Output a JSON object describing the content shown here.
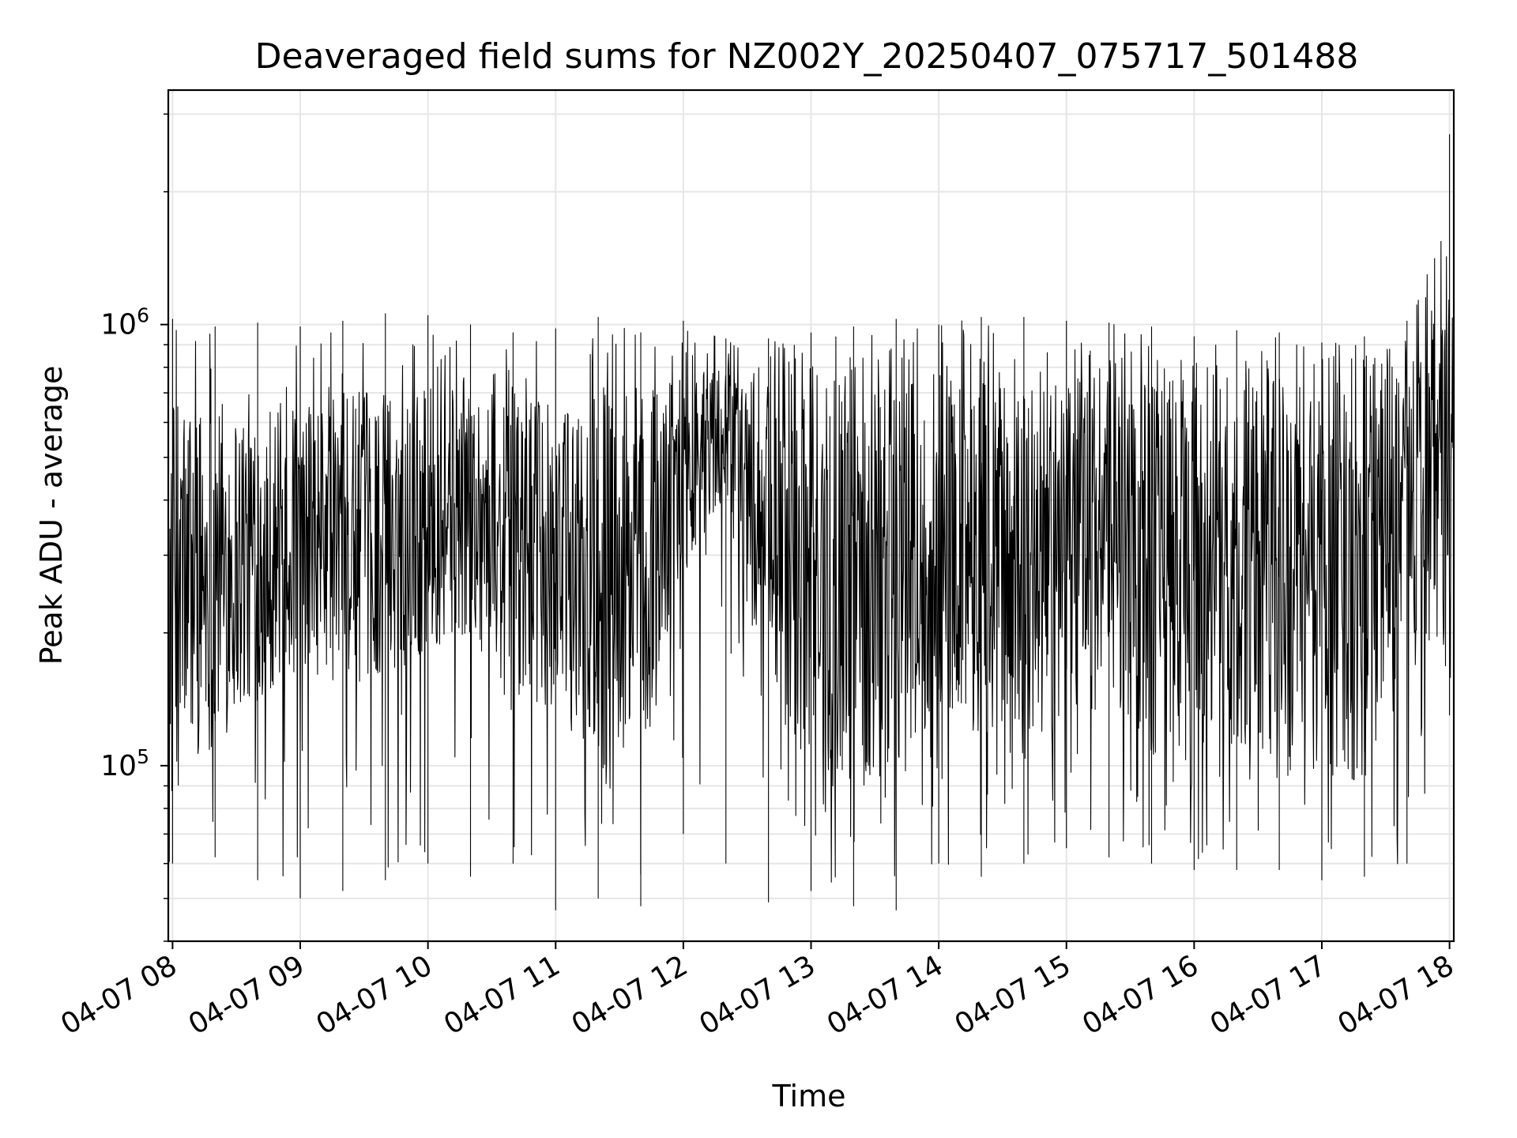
{
  "chart_data": {
    "type": "line",
    "title": "Deaveraged field sums for NZ002Y_20250407_075717_501488",
    "xlabel": "Time",
    "ylabel": "Peak ADU - average",
    "yscale": "log",
    "xlim": [
      "2025-04-07 07:58",
      "2025-04-07 18:02"
    ],
    "ylim": [
      40000,
      3400000
    ],
    "x_ticks": [
      {
        "value": "2025-04-07 08:00",
        "label": "04-07 08"
      },
      {
        "value": "2025-04-07 09:00",
        "label": "04-07 09"
      },
      {
        "value": "2025-04-07 10:00",
        "label": "04-07 10"
      },
      {
        "value": "2025-04-07 11:00",
        "label": "04-07 11"
      },
      {
        "value": "2025-04-07 12:00",
        "label": "04-07 12"
      },
      {
        "value": "2025-04-07 13:00",
        "label": "04-07 13"
      },
      {
        "value": "2025-04-07 14:00",
        "label": "04-07 14"
      },
      {
        "value": "2025-04-07 15:00",
        "label": "04-07 15"
      },
      {
        "value": "2025-04-07 16:00",
        "label": "04-07 16"
      },
      {
        "value": "2025-04-07 17:00",
        "label": "04-07 17"
      },
      {
        "value": "2025-04-07 18:00",
        "label": "04-07 18"
      }
    ],
    "y_ticks": [
      {
        "value": 100000,
        "base": "10",
        "exp": "5"
      },
      {
        "value": 1000000,
        "base": "10",
        "exp": "6"
      }
    ],
    "grid": true,
    "line_color": "#000000",
    "grid_color": "#e6e6e6",
    "series": [
      {
        "x": [
          "2025-04-07 08:00",
          "2025-04-07 08:20",
          "2025-04-07 08:40",
          "2025-04-07 09:00",
          "2025-04-07 09:20",
          "2025-04-07 09:40",
          "2025-04-07 10:00",
          "2025-04-07 10:20",
          "2025-04-07 10:40",
          "2025-04-07 11:00",
          "2025-04-07 11:20",
          "2025-04-07 11:40",
          "2025-04-07 12:00",
          "2025-04-07 12:20",
          "2025-04-07 12:40",
          "2025-04-07 13:00",
          "2025-04-07 13:20",
          "2025-04-07 13:40",
          "2025-04-07 14:00",
          "2025-04-07 14:20",
          "2025-04-07 14:40",
          "2025-04-07 15:00",
          "2025-04-07 15:20",
          "2025-04-07 15:40",
          "2025-04-07 16:00",
          "2025-04-07 16:20",
          "2025-04-07 16:40",
          "2025-04-07 17:00",
          "2025-04-07 17:20",
          "2025-04-07 17:40",
          "2025-04-07 18:00"
        ],
        "y_low": [
          100000,
          110000,
          140000,
          160000,
          150000,
          160000,
          180000,
          200000,
          130000,
          140000,
          100000,
          90000,
          270000,
          400000,
          130000,
          110000,
          90000,
          90000,
          120000,
          120000,
          100000,
          120000,
          140000,
          100000,
          100000,
          90000,
          90000,
          90000,
          90000,
          150000,
          200000
        ],
        "y_high": [
          700000,
          700000,
          700000,
          650000,
          700000,
          720000,
          720000,
          750000,
          700000,
          650000,
          700000,
          750000,
          780000,
          800000,
          820000,
          820000,
          820000,
          800000,
          800000,
          800000,
          800000,
          800000,
          850000,
          800000,
          780000,
          760000,
          760000,
          760000,
          760000,
          850000,
          1500000
        ],
        "y_min": [
          60000,
          62000,
          55000,
          50000,
          52000,
          55000,
          60000,
          56000,
          60000,
          47000,
          50000,
          48000,
          70000,
          60000,
          49000,
          52000,
          48000,
          47000,
          60000,
          56000,
          60000,
          65000,
          62000,
          60000,
          58000,
          58000,
          58000,
          55000,
          56000,
          60000,
          130000
        ],
        "y_max": [
          1030000,
          990000,
          1010000,
          990000,
          1020000,
          1060000,
          1050000,
          1000000,
          960000,
          980000,
          1040000,
          960000,
          1020000,
          930000,
          930000,
          960000,
          990000,
          1030000,
          1000000,
          1040000,
          1040000,
          1020000,
          1010000,
          990000,
          940000,
          970000,
          960000,
          910000,
          940000,
          1020000,
          2700000
        ]
      }
    ]
  }
}
